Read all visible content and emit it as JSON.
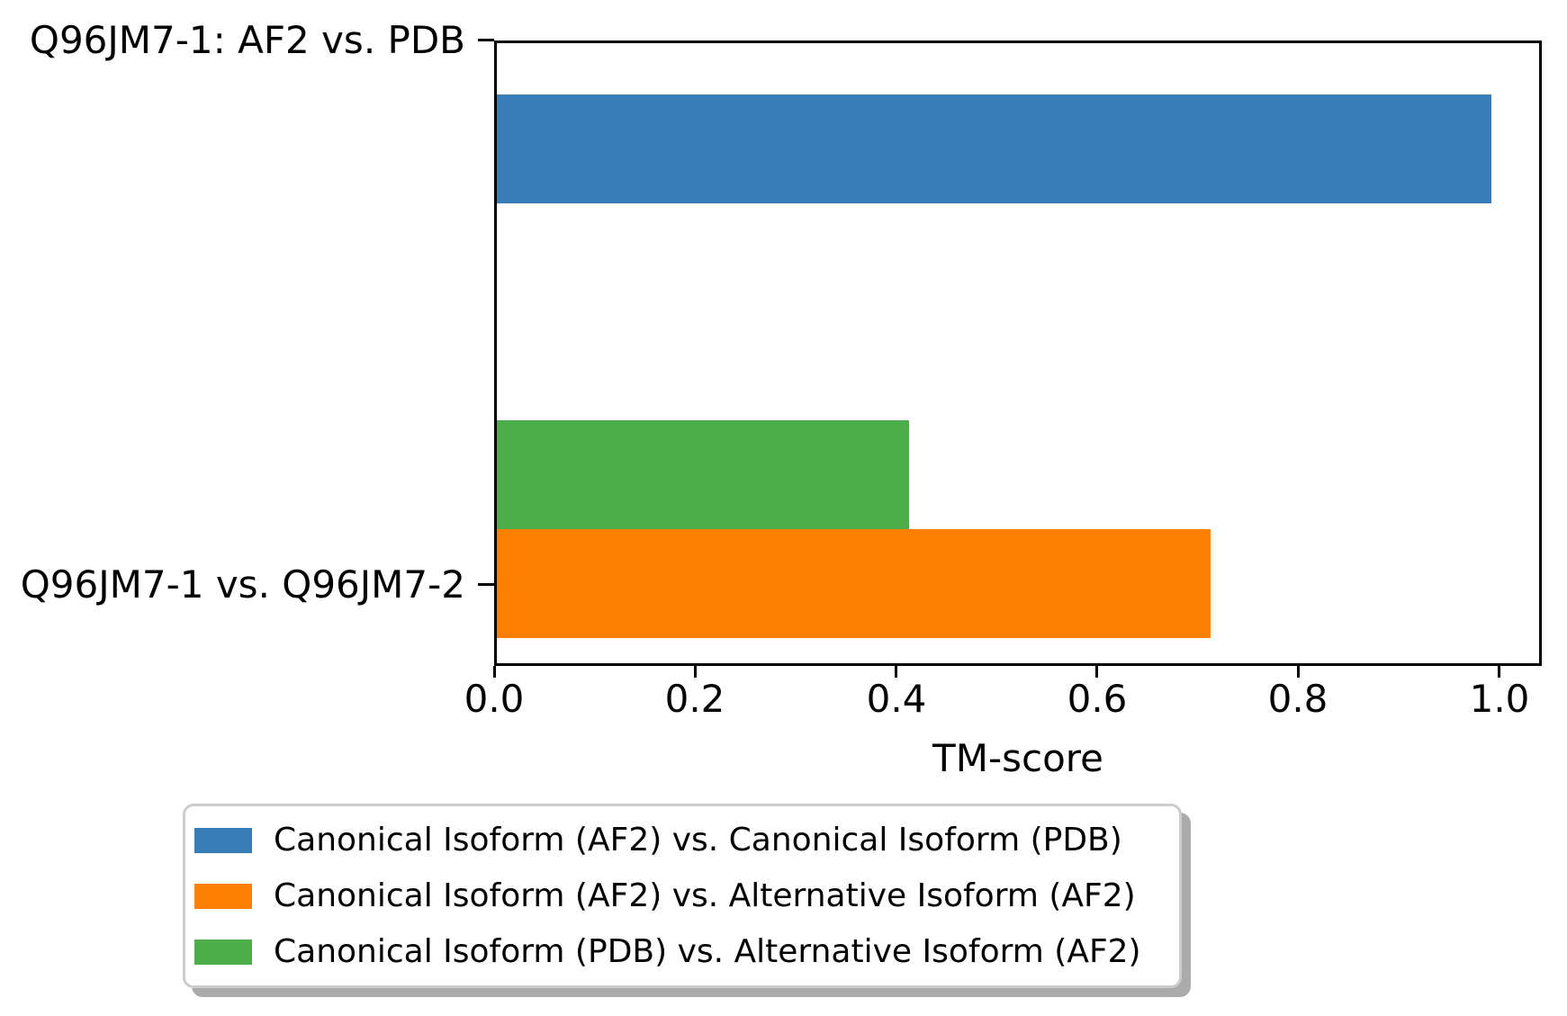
{
  "chart_data": {
    "type": "bar",
    "orientation": "horizontal",
    "title": "",
    "xlabel": "TM-score",
    "ylabel": "",
    "xlim": [
      0,
      1.0425
    ],
    "xticks": [
      0.0,
      0.2,
      0.4,
      0.6,
      0.8,
      1.0
    ],
    "xtick_labels": [
      "0.0",
      "0.2",
      "0.4",
      "0.6",
      "0.8",
      "1.0"
    ],
    "grid": false,
    "categories": [
      "Q96JM7-1: AF2 vs. PDB",
      "Q96JM7-1 vs. Q96JM7-2"
    ],
    "series": [
      {
        "name": "Canonical Isoform (AF2) vs. Canonical Isoform (PDB)",
        "category": "Q96JM7-1: AF2 vs. PDB",
        "value": 0.99,
        "color": "#377eb8"
      },
      {
        "name": "Canonical Isoform (AF2) vs. Alternative Isoform (AF2)",
        "category": "Q96JM7-1 vs. Q96JM7-2",
        "value": 0.71,
        "color": "#ff7f00"
      },
      {
        "name": "Canonical Isoform (PDB) vs. Alternative Isoform (AF2)",
        "category": "Q96JM7-1 vs. Q96JM7-2",
        "value": 0.41,
        "color": "#4daf4a"
      }
    ],
    "legend": {
      "position": "below-axis",
      "labels": [
        "Canonical Isoform (AF2) vs. Canonical Isoform (PDB)",
        "Canonical Isoform (AF2) vs. Alternative Isoform (AF2)",
        "Canonical Isoform (PDB) vs. Alternative Isoform (AF2)"
      ]
    }
  },
  "colors": {
    "axis": "#000000",
    "text": "#000000",
    "background": "#ffffff",
    "legend_border": "#cccccc",
    "legend_shadow": "#ababab"
  }
}
